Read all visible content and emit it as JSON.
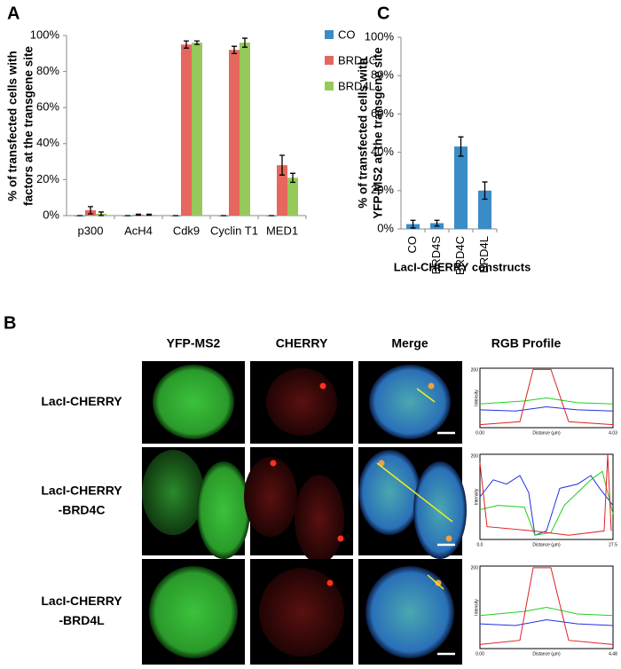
{
  "chart_data": [
    {
      "type": "bar",
      "panel_label": "A",
      "ylabel": [
        "% of transfected cells with",
        "factors at the transgene site"
      ],
      "categories": [
        "p300",
        "AcH4",
        "Cdk9",
        "Cyclin T1",
        "MED1"
      ],
      "series": [
        {
          "name": "CO",
          "color": "#3a8cc6",
          "values": [
            0,
            0,
            0,
            0,
            0
          ],
          "errors": [
            0,
            0,
            0,
            0,
            0
          ]
        },
        {
          "name": "BRD4C",
          "color": "#e5675d",
          "values": [
            3,
            0.5,
            95,
            92,
            28
          ],
          "errors": [
            2,
            0.3,
            2,
            2,
            5.5
          ]
        },
        {
          "name": "BRD4L",
          "color": "#97c85a",
          "values": [
            1,
            0.5,
            96,
            96,
            21
          ],
          "errors": [
            1,
            0.3,
            1,
            2.5,
            2.5
          ]
        }
      ],
      "ylim": [
        0,
        100
      ],
      "yticks": [
        {
          "value": 0,
          "label": "0%"
        },
        {
          "value": 20,
          "label": "20%"
        },
        {
          "value": 40,
          "label": "40%"
        },
        {
          "value": 60,
          "label": "60%"
        },
        {
          "value": 80,
          "label": "80%"
        },
        {
          "value": 100,
          "label": "100%"
        }
      ],
      "legend": "top-right"
    },
    {
      "type": "bar",
      "panel_label": "C",
      "ylabel": [
        "% of transfected cells with",
        "YFP-MS2 at the transgene site"
      ],
      "xlabel": "LacI-CHERRY constructs",
      "categories": [
        "CO",
        "BRD4S",
        "BRD4C",
        "BRD4L"
      ],
      "values": [
        2.5,
        3,
        43,
        20
      ],
      "errors": [
        2,
        1.5,
        5,
        4.5
      ],
      "color": "#3a8cc6",
      "ylim": [
        0,
        100
      ],
      "yticks": [
        {
          "value": 0,
          "label": "0%"
        },
        {
          "value": 20,
          "label": "20%"
        },
        {
          "value": 40,
          "label": "40%"
        },
        {
          "value": 60,
          "label": "60%"
        },
        {
          "value": 80,
          "label": "80%"
        },
        {
          "value": 100,
          "label": "100%"
        }
      ]
    }
  ],
  "panel_b": {
    "label": "B",
    "columns": [
      "YFP-MS2",
      "CHERRY",
      "Merge",
      "RGB Profile"
    ],
    "rows": [
      {
        "label": [
          "LacI-CHERRY"
        ],
        "profile": {
          "y_max": 200,
          "y_label": "Intensity",
          "x_start": "0.00",
          "x_label": "Distance (µm)",
          "x_end": "4.03"
        }
      },
      {
        "label": [
          "LacI-CHERRY",
          "-BRD4C"
        ],
        "profile": {
          "y_max": 200,
          "y_label": "Intensity",
          "x_start": "0.0",
          "x_label": "Distance (µm)",
          "x_end": "27.5"
        }
      },
      {
        "label": [
          "LacI-CHERRY",
          "-BRD4L"
        ],
        "profile": {
          "y_max": 200,
          "y_label": "Intensity",
          "x_start": "0.00",
          "x_label": "Distance (µm)",
          "x_end": "4.48"
        }
      }
    ]
  }
}
